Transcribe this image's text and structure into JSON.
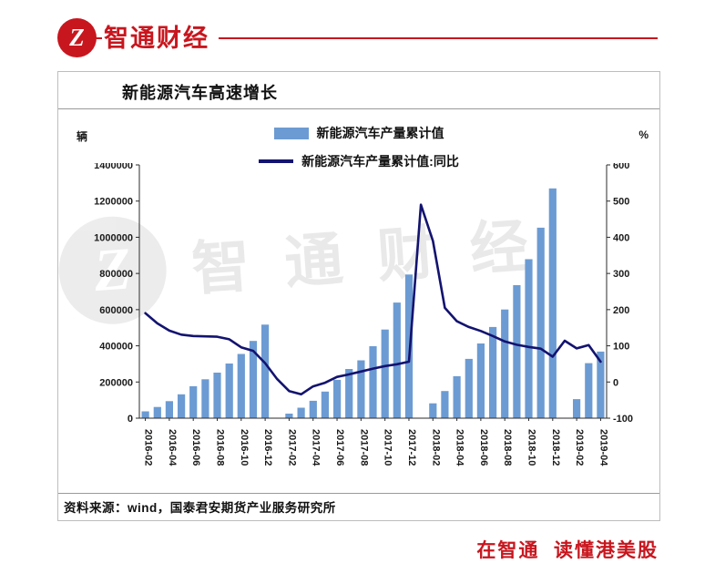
{
  "brand": {
    "logo_text": "智通财经",
    "logo_letter": "Z",
    "accent_color": "#c8161e"
  },
  "chart": {
    "title": "新能源汽车高速增长",
    "left_unit": "辆",
    "right_unit": "%",
    "legend": [
      {
        "type": "bar",
        "label": "新能源汽车产量累计值",
        "color": "#6c9bd3"
      },
      {
        "type": "line",
        "label": "新能源汽车产量累计值:同比",
        "color": "#131370"
      }
    ],
    "source": "资料来源：wind，国泰君安期货产业服务研究所"
  },
  "watermark": {
    "text": "智通财经"
  },
  "footer": {
    "slogan": "在智通  读懂港美股"
  },
  "chart_data": {
    "type": "bar",
    "x": [
      "2016-02",
      "2016-03",
      "2016-04",
      "2016-05",
      "2016-06",
      "2016-07",
      "2016-08",
      "2016-09",
      "2016-10",
      "2016-11",
      "2016-12",
      "2017-01",
      "2017-02",
      "2017-03",
      "2017-04",
      "2017-05",
      "2017-06",
      "2017-07",
      "2017-08",
      "2017-09",
      "2017-10",
      "2017-11",
      "2017-12",
      "2018-01",
      "2018-02",
      "2018-03",
      "2018-04",
      "2018-05",
      "2018-06",
      "2018-07",
      "2018-08",
      "2018-09",
      "2018-10",
      "2018-11",
      "2018-12",
      "2019-01",
      "2019-02",
      "2019-03",
      "2019-04"
    ],
    "x_tick_every": 2,
    "series": [
      {
        "name": "新能源汽车产量累计值",
        "type": "bar",
        "axis": "left",
        "color": "#6c9bd3",
        "values": [
          38000,
          62000,
          94000,
          132000,
          177000,
          215000,
          252000,
          302000,
          355000,
          427000,
          517000,
          null,
          25000,
          58000,
          96000,
          147000,
          212000,
          272000,
          320000,
          398000,
          490000,
          639000,
          794000,
          null,
          82000,
          150000,
          232000,
          328000,
          413000,
          504000,
          601000,
          735000,
          879000,
          1053000,
          1270000,
          null,
          105000,
          304000,
          368000
        ]
      },
      {
        "name": "新能源汽车产量累计值:同比",
        "type": "line",
        "axis": "right",
        "color": "#131370",
        "values": [
          190,
          162,
          142,
          131,
          127,
          126,
          125,
          118,
          96,
          86,
          52,
          8,
          -25,
          -34,
          -12,
          -2,
          14,
          21,
          29,
          37,
          44,
          49,
          56,
          490,
          390,
          205,
          168,
          152,
          141,
          127,
          112,
          103,
          97,
          92,
          70,
          114,
          93,
          102,
          56
        ]
      }
    ],
    "left_axis": {
      "label": "辆",
      "min": 0,
      "max": 1400000,
      "step": 200000
    },
    "right_axis": {
      "label": "%",
      "min": -100,
      "max": 600,
      "step": 100
    },
    "grid": false,
    "legend_position": "top-center"
  }
}
